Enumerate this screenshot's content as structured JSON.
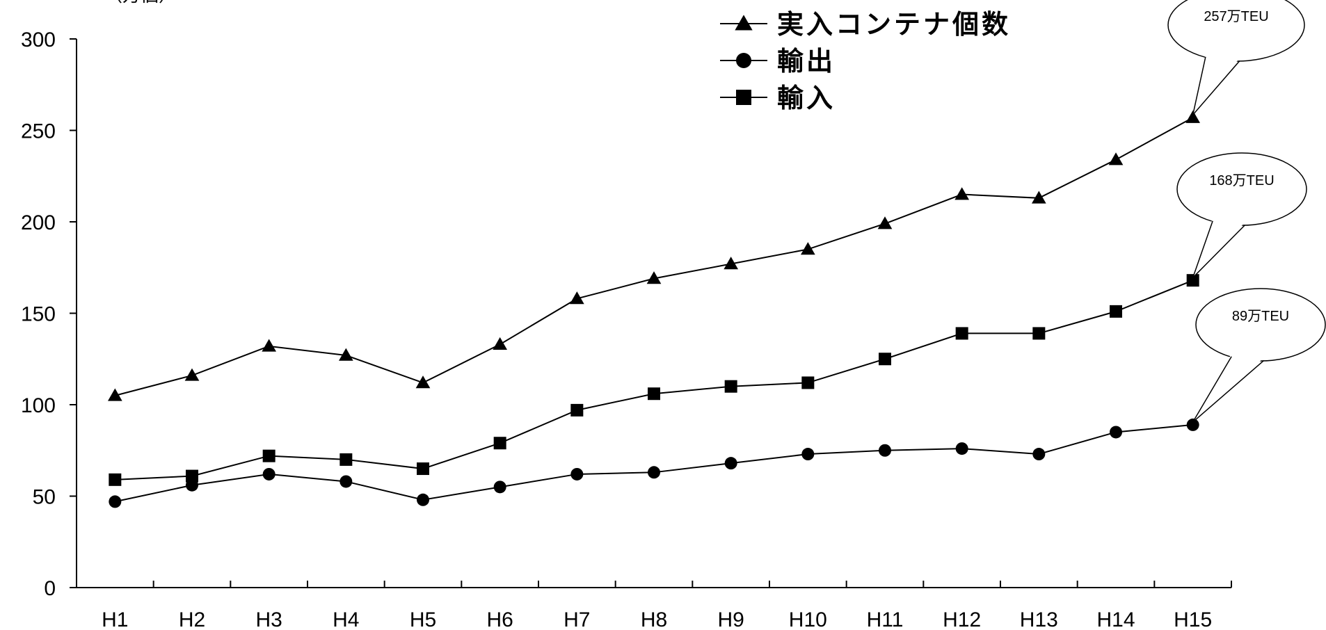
{
  "chart_data": {
    "type": "line",
    "title": "",
    "xlabel": "",
    "ylabel": "",
    "unit_label": "（万個）",
    "categories": [
      "H1",
      "H2",
      "H3",
      "H4",
      "H5",
      "H6",
      "H7",
      "H8",
      "H9",
      "H10",
      "H11",
      "H12",
      "H13",
      "H14",
      "H15"
    ],
    "ylim": [
      0,
      300
    ],
    "yticks": [
      0,
      50,
      100,
      150,
      200,
      250,
      300
    ],
    "grid": false,
    "legend_position": "top-center",
    "series": [
      {
        "name": "実入コンテナ個数",
        "marker": "triangle",
        "values": [
          105,
          116,
          132,
          127,
          112,
          133,
          158,
          169,
          177,
          185,
          199,
          215,
          213,
          234,
          257
        ]
      },
      {
        "name": "輸出",
        "marker": "circle",
        "values": [
          47,
          56,
          62,
          58,
          48,
          55,
          62,
          63,
          68,
          73,
          75,
          76,
          73,
          85,
          89
        ]
      },
      {
        "name": "輸入",
        "marker": "square",
        "values": [
          59,
          61,
          72,
          70,
          65,
          79,
          97,
          106,
          110,
          112,
          125,
          139,
          139,
          151,
          168
        ]
      }
    ],
    "annotations": [
      {
        "text": "257万TEU",
        "series": 0,
        "index": 14
      },
      {
        "text": "168万TEU",
        "series": 2,
        "index": 14
      },
      {
        "text": "89万TEU",
        "series": 1,
        "index": 14
      }
    ]
  }
}
